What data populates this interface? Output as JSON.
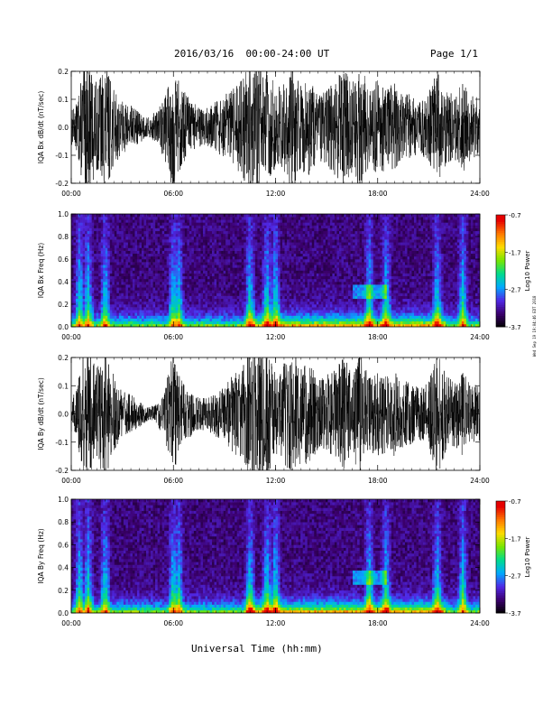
{
  "page": {
    "title": "2016/03/16  00:00-24:00 UT",
    "page_label": "Page 1/1",
    "xlabel": "Universal Time (hh:mm)",
    "stamp": "Wed Sep 19 19:04:46 EDT 2018"
  },
  "chart_data": [
    {
      "type": "line",
      "ylabel": "IQA Bx dB/dt (nT/sec)",
      "x_ticks": [
        "00:00",
        "06:00",
        "12:00",
        "18:00",
        "24:00"
      ],
      "xlim": [
        0,
        24
      ],
      "ylim": [
        -0.2,
        0.2
      ],
      "y_ticks": [
        "0.2",
        "0.1",
        "0.0",
        "-0.1",
        "-0.2"
      ],
      "envelope_hours": [
        0.25,
        0.75,
        1.0,
        1.5,
        2.0,
        2.5,
        3.0,
        3.5,
        4.0,
        4.5,
        5.0,
        5.5,
        6.0,
        6.5,
        7.0,
        7.5,
        8.0,
        8.5,
        9.0,
        9.5,
        10.0,
        10.5,
        11.0,
        11.5,
        12.0,
        12.5,
        13.0,
        13.5,
        14.0,
        14.5,
        15.0,
        15.5,
        16.0,
        16.5,
        17.0,
        17.5,
        18.0,
        18.5,
        19.0,
        19.5,
        20.0,
        20.5,
        21.0,
        21.5,
        22.0,
        22.5,
        23.0,
        23.5
      ],
      "envelope_amplitude": [
        0.06,
        0.2,
        0.2,
        0.14,
        0.2,
        0.12,
        0.08,
        0.07,
        0.05,
        0.03,
        0.05,
        0.1,
        0.2,
        0.12,
        0.09,
        0.06,
        0.06,
        0.08,
        0.1,
        0.12,
        0.15,
        0.2,
        0.2,
        0.2,
        0.12,
        0.15,
        0.2,
        0.14,
        0.15,
        0.1,
        0.12,
        0.15,
        0.2,
        0.14,
        0.2,
        0.12,
        0.15,
        0.13,
        0.14,
        0.11,
        0.1,
        0.08,
        0.11,
        0.2,
        0.12,
        0.1,
        0.14,
        0.1
      ]
    },
    {
      "type": "heatmap",
      "ylabel": "IQA Bx Freq (Hz)",
      "x_ticks": [
        "00:00",
        "06:00",
        "12:00",
        "18:00",
        "24:00"
      ],
      "xlim": [
        0,
        24
      ],
      "ylim": [
        0.0,
        1.0
      ],
      "y_ticks": [
        "1.0",
        "0.8",
        "0.6",
        "0.4",
        "0.2",
        "0.0"
      ],
      "colorbar": {
        "label": "Log10 Power",
        "ticks": [
          "-0.7",
          "-1.7",
          "-2.7",
          "-3.7"
        ],
        "range": [
          -3.7,
          -0.7
        ]
      },
      "hot_hours": [
        0.5,
        1.0,
        2.0,
        6.0,
        6.3,
        10.5,
        11.5,
        12.0,
        17.5,
        18.5,
        21.5,
        23.0
      ]
    },
    {
      "type": "line",
      "ylabel": "IQA By dB/dt (nT/sec)",
      "x_ticks": [
        "00:00",
        "06:00",
        "12:00",
        "18:00",
        "24:00"
      ],
      "xlim": [
        0,
        24
      ],
      "ylim": [
        -0.2,
        0.2
      ],
      "y_ticks": [
        "0.2",
        "0.1",
        "0.0",
        "-0.1",
        "-0.2"
      ],
      "envelope_hours": [
        0.25,
        0.75,
        1.0,
        1.5,
        2.0,
        2.5,
        3.0,
        3.5,
        4.0,
        4.5,
        5.0,
        5.5,
        6.0,
        6.5,
        7.0,
        7.5,
        8.0,
        8.5,
        9.0,
        9.5,
        10.0,
        10.5,
        11.0,
        11.5,
        12.0,
        12.5,
        13.0,
        13.5,
        14.0,
        14.5,
        15.0,
        15.5,
        16.0,
        16.5,
        17.0,
        17.5,
        18.0,
        18.5,
        19.0,
        19.5,
        20.0,
        20.5,
        21.0,
        21.5,
        22.0,
        22.5,
        23.0,
        23.5
      ],
      "envelope_amplitude": [
        0.06,
        0.2,
        0.2,
        0.15,
        0.2,
        0.12,
        0.07,
        0.06,
        0.04,
        0.02,
        0.03,
        0.08,
        0.2,
        0.1,
        0.07,
        0.05,
        0.05,
        0.07,
        0.09,
        0.12,
        0.14,
        0.2,
        0.2,
        0.2,
        0.12,
        0.16,
        0.2,
        0.15,
        0.16,
        0.11,
        0.12,
        0.14,
        0.18,
        0.13,
        0.2,
        0.11,
        0.14,
        0.12,
        0.13,
        0.1,
        0.1,
        0.08,
        0.11,
        0.2,
        0.12,
        0.1,
        0.13,
        0.09
      ]
    },
    {
      "type": "heatmap",
      "ylabel": "IQA By Freq (Hz)",
      "x_ticks": [
        "00:00",
        "06:00",
        "12:00",
        "18:00",
        "24:00"
      ],
      "xlim": [
        0,
        24
      ],
      "ylim": [
        0.0,
        1.0
      ],
      "y_ticks": [
        "1.0",
        "0.8",
        "0.6",
        "0.4",
        "0.2",
        "0.0"
      ],
      "colorbar": {
        "label": "Log10 Power",
        "ticks": [
          "-0.7",
          "-1.7",
          "-2.7",
          "-3.7"
        ],
        "range": [
          -3.7,
          -0.7
        ]
      },
      "hot_hours": [
        0.5,
        1.0,
        2.0,
        6.0,
        6.3,
        10.5,
        11.5,
        12.0,
        17.5,
        18.5,
        21.5,
        23.0
      ]
    }
  ]
}
